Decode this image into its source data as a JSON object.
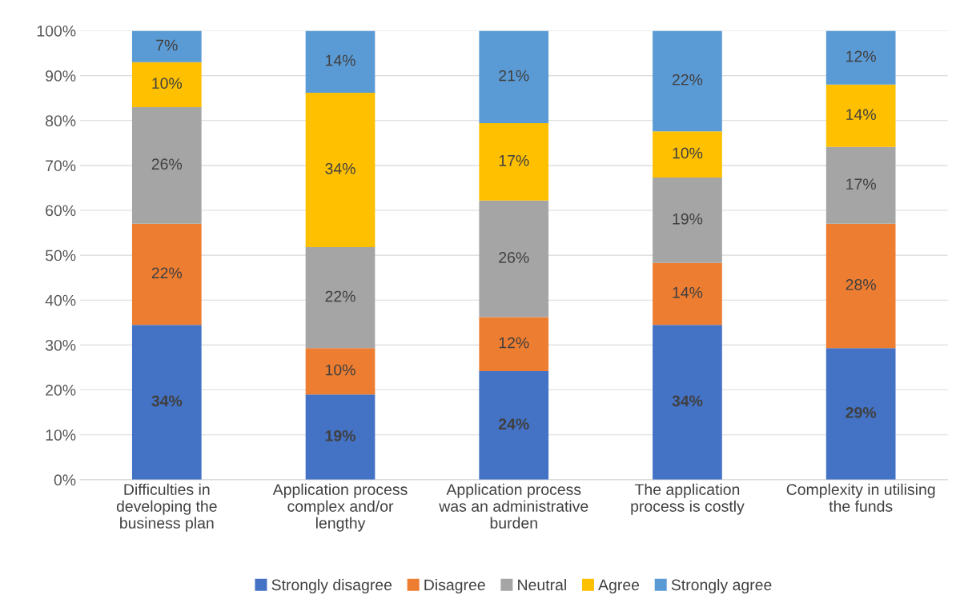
{
  "chart_data": {
    "type": "bar",
    "stacked": true,
    "categories": [
      "Difficulties in\ndeveloping the\nbusiness plan",
      "Application process\ncomplex and/or\nlengthy",
      "Application process\nwas an administrative\nburden",
      "The application\nprocess is costly",
      "Complexity in utilising\nthe funds"
    ],
    "series": [
      {
        "name": "Strongly disagree",
        "color": "#4472c4",
        "values": [
          34.5,
          19,
          24.2,
          34.5,
          29.3
        ],
        "value_labels": [
          "34%",
          "19%",
          "24%",
          "34%",
          "29%"
        ]
      },
      {
        "name": "Disagree",
        "color": "#ed7d31",
        "values": [
          22.5,
          10.3,
          12,
          13.8,
          27.7
        ],
        "value_labels": [
          "22%",
          "10%",
          "12%",
          "14%",
          "28%"
        ]
      },
      {
        "name": "Neutral",
        "color": "#a5a5a5",
        "values": [
          26,
          22.5,
          26,
          19,
          17.1
        ],
        "value_labels": [
          "26%",
          "22%",
          "26%",
          "19%",
          "17%"
        ]
      },
      {
        "name": "Agree",
        "color": "#ffc000",
        "values": [
          10,
          34.4,
          17.2,
          10.3,
          13.9
        ],
        "value_labels": [
          "10%",
          "34%",
          "17%",
          "10%",
          "14%"
        ]
      },
      {
        "name": "Strongly agree",
        "color": "#5b9bd5",
        "values": [
          7,
          13.8,
          20.6,
          22.4,
          12
        ],
        "value_labels": [
          "7%",
          "14%",
          "21%",
          "22%",
          "12%"
        ]
      }
    ],
    "ylim": [
      0,
      100
    ],
    "yticks": [
      {
        "value": 0,
        "label": "0%"
      },
      {
        "value": 10,
        "label": "10%"
      },
      {
        "value": 20,
        "label": "20%"
      },
      {
        "value": 30,
        "label": "30%"
      },
      {
        "value": 40,
        "label": "40%"
      },
      {
        "value": 50,
        "label": "50%"
      },
      {
        "value": 60,
        "label": "60%"
      },
      {
        "value": 70,
        "label": "70%"
      },
      {
        "value": 80,
        "label": "80%"
      },
      {
        "value": 90,
        "label": "90%"
      },
      {
        "value": 100,
        "label": "100%"
      }
    ],
    "grid": "y",
    "legend": "bottom"
  }
}
